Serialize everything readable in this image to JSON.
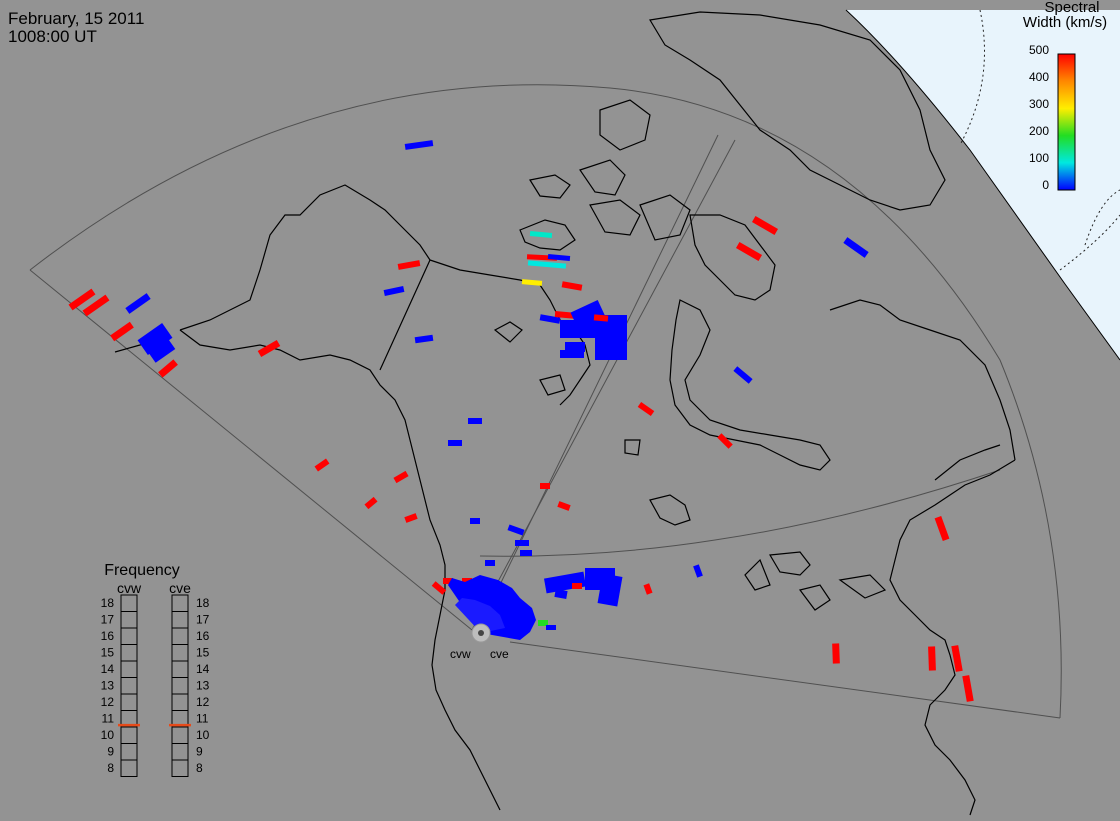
{
  "header": {
    "date": "February, 15 2011",
    "time": "1008:00 UT"
  },
  "colorbar": {
    "title_line1": "Spectral",
    "title_line2": "Width (km/s)",
    "ticks": [
      "500",
      "400",
      "300",
      "200",
      "100",
      "0"
    ],
    "gradient_colors": [
      "#ff0000",
      "#ff8800",
      "#ffee00",
      "#22dd22",
      "#00e8e0",
      "#0000ff"
    ]
  },
  "frequency_panel": {
    "title": "Frequency",
    "columns": [
      {
        "label": "cvw",
        "value_mhz": 10.6
      },
      {
        "label": "cve",
        "value_mhz": 10.6
      }
    ],
    "ticks": [
      "18",
      "17",
      "16",
      "15",
      "14",
      "13",
      "12",
      "11",
      "10",
      "9",
      "8"
    ]
  },
  "radars": [
    {
      "label": "cvw"
    },
    {
      "label": "cve"
    }
  ],
  "colors": {
    "map_background": "#939393",
    "daylight": "#e8f4fc",
    "coastline": "#000000",
    "fov_outline": "#555555",
    "freq_marker": "#e64a19",
    "scatter_low": "#0000ff",
    "scatter_high": "#ff0000"
  }
}
